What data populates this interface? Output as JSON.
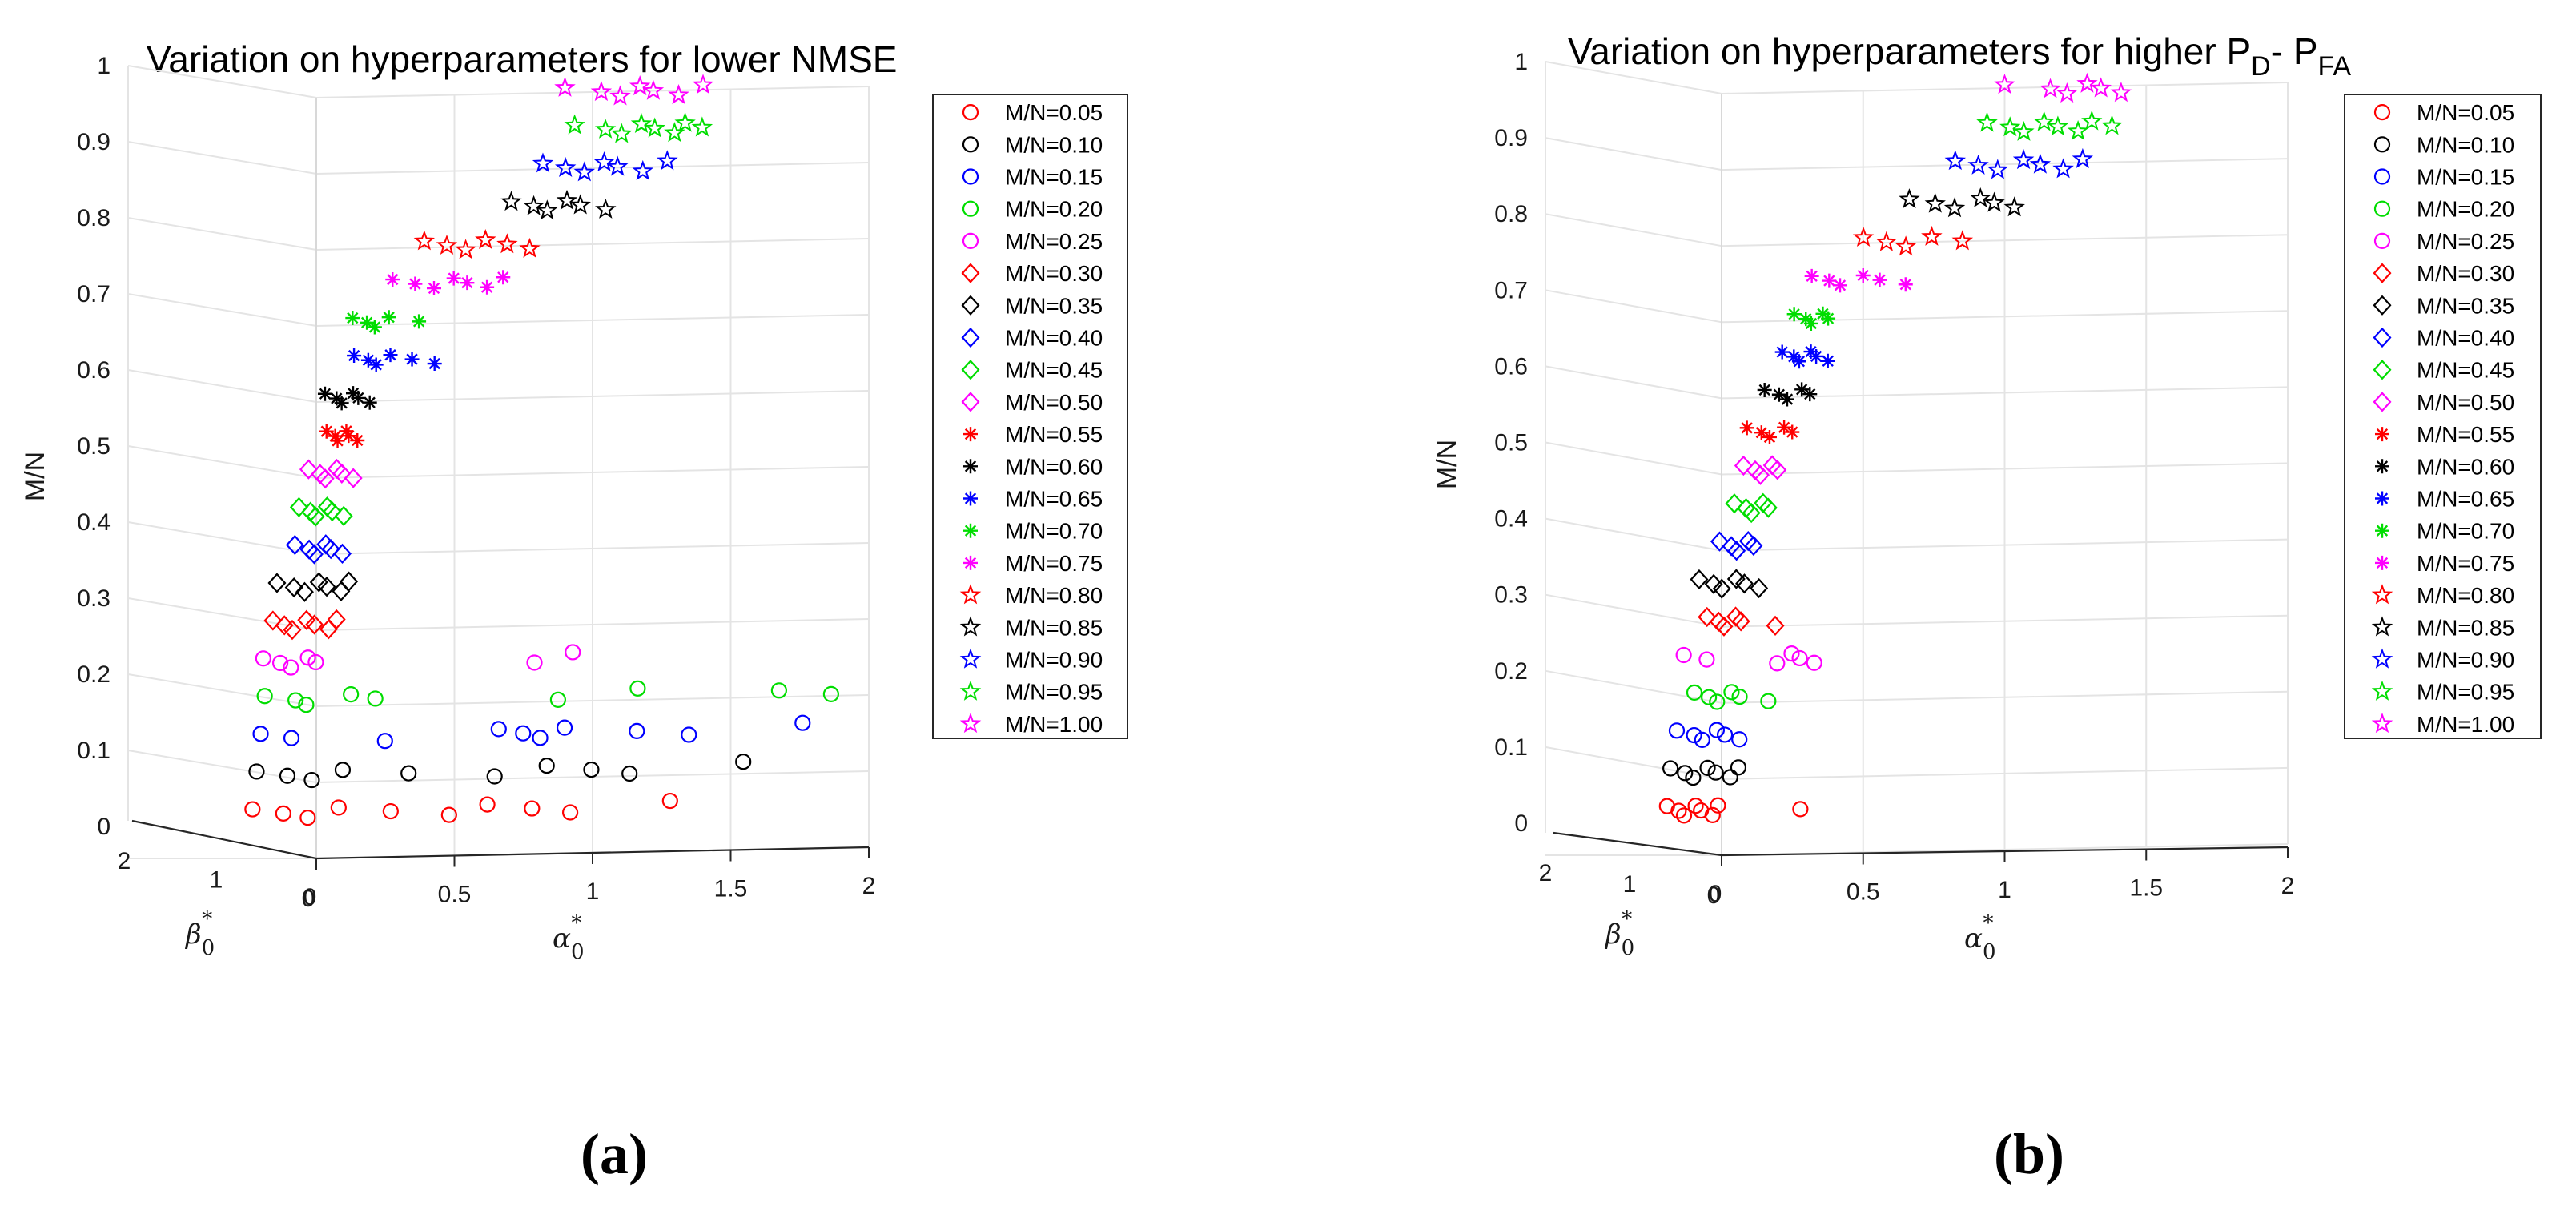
{
  "figure_labels": {
    "a": "(a)",
    "b": "(b)"
  },
  "chart_data": [
    {
      "id": "a",
      "type": "scatter",
      "title": "Variation on hyperparameters for lower NMSE",
      "xlabel": "α0*",
      "zlabel": "β0*",
      "ylabel": "M/N",
      "x_ticks": [
        "0",
        "0.5",
        "1",
        "1.5",
        "2"
      ],
      "z_ticks": [
        "2",
        "1",
        "0"
      ],
      "y_ticks": [
        "0",
        "0.1",
        "0.2",
        "0.3",
        "0.4",
        "0.5",
        "0.6",
        "0.7",
        "0.8",
        "0.9",
        "1"
      ],
      "ylim": [
        0,
        1
      ],
      "legend": [
        "M/N=0.05",
        "M/N=0.10",
        "M/N=0.15",
        "M/N=0.20",
        "M/N=0.25",
        "M/N=0.30",
        "M/N=0.35",
        "M/N=0.40",
        "M/N=0.45",
        "M/N=0.50",
        "M/N=0.55",
        "M/N=0.60",
        "M/N=0.65",
        "M/N=0.70",
        "M/N=0.75",
        "M/N=0.80",
        "M/N=0.85",
        "M/N=0.90",
        "M/N=0.95",
        "M/N=1.00"
      ],
      "series": [
        {
          "name": "M/N=0.05",
          "y": 0.05,
          "marker": "circle",
          "color": "#ff0000",
          "alpha": [
            0.05,
            0.15,
            0.25,
            0.35,
            0.55,
            0.75,
            0.9,
            1.05,
            1.2,
            1.55
          ]
        },
        {
          "name": "M/N=0.10",
          "y": 0.1,
          "marker": "circle",
          "color": "#000000",
          "alpha": [
            0.05,
            0.15,
            0.25,
            0.35,
            0.6,
            0.9,
            1.1,
            1.25,
            1.4,
            1.8
          ]
        },
        {
          "name": "M/N=0.15",
          "y": 0.15,
          "marker": "circle",
          "color": "#0000ff",
          "alpha": [
            0.05,
            0.15,
            0.5,
            0.9,
            1.0,
            1.05,
            1.15,
            1.4,
            1.6,
            2.0
          ]
        },
        {
          "name": "M/N=0.20",
          "y": 0.2,
          "marker": "circle",
          "color": "#00dd00",
          "alpha": [
            0.05,
            0.15,
            0.2,
            0.35,
            0.45,
            1.1,
            1.4,
            1.9,
            2.1
          ]
        },
        {
          "name": "M/N=0.25",
          "y": 0.25,
          "marker": "circle",
          "color": "#ff00ff",
          "alpha": [
            0.03,
            0.08,
            0.13,
            0.18,
            0.22,
            1.0,
            1.15
          ]
        },
        {
          "name": "M/N=0.30",
          "y": 0.3,
          "marker": "diamond",
          "color": "#ff0000",
          "alpha": [
            0.05,
            0.08,
            0.12,
            0.16,
            0.2,
            0.24,
            0.28
          ]
        },
        {
          "name": "M/N=0.35",
          "y": 0.35,
          "marker": "diamond",
          "color": "#000000",
          "alpha": [
            0.05,
            0.1,
            0.15,
            0.19,
            0.23,
            0.27,
            0.31
          ]
        },
        {
          "name": "M/N=0.40",
          "y": 0.4,
          "marker": "diamond",
          "color": "#0000ff",
          "alpha": [
            0.1,
            0.14,
            0.17,
            0.2,
            0.23,
            0.26
          ]
        },
        {
          "name": "M/N=0.45",
          "y": 0.45,
          "marker": "diamond",
          "color": "#00dd00",
          "alpha": [
            0.1,
            0.13,
            0.16,
            0.19,
            0.22,
            0.25
          ]
        },
        {
          "name": "M/N=0.50",
          "y": 0.5,
          "marker": "diamond",
          "color": "#ff00ff",
          "alpha": [
            0.12,
            0.15,
            0.18,
            0.21,
            0.24,
            0.27
          ]
        },
        {
          "name": "M/N=0.55",
          "y": 0.55,
          "marker": "asterisk",
          "color": "#ff0000",
          "alpha": [
            0.17,
            0.19,
            0.21,
            0.23,
            0.25,
            0.27
          ]
        },
        {
          "name": "M/N=0.60",
          "y": 0.6,
          "marker": "asterisk",
          "color": "#000000",
          "alpha": [
            0.15,
            0.18,
            0.21,
            0.24,
            0.27,
            0.3
          ]
        },
        {
          "name": "M/N=0.65",
          "y": 0.65,
          "marker": "asterisk",
          "color": "#0000ff",
          "alpha": [
            0.24,
            0.28,
            0.32,
            0.36,
            0.45,
            0.52
          ]
        },
        {
          "name": "M/N=0.70",
          "y": 0.7,
          "marker": "asterisk",
          "color": "#00dd00",
          "alpha": [
            0.22,
            0.26,
            0.3,
            0.34,
            0.46
          ]
        },
        {
          "name": "M/N=0.75",
          "y": 0.75,
          "marker": "asterisk",
          "color": "#ff00ff",
          "alpha": [
            0.35,
            0.42,
            0.5,
            0.56,
            0.62,
            0.68,
            0.75
          ]
        },
        {
          "name": "M/N=0.80",
          "y": 0.8,
          "marker": "star",
          "color": "#ff0000",
          "alpha": [
            0.45,
            0.52,
            0.6,
            0.66,
            0.75,
            0.82
          ]
        },
        {
          "name": "M/N=0.85",
          "y": 0.85,
          "marker": "star",
          "color": "#000000",
          "alpha": [
            0.75,
            0.82,
            0.88,
            0.94,
            1.0,
            1.08
          ]
        },
        {
          "name": "M/N=0.90",
          "y": 0.9,
          "marker": "star",
          "color": "#0000ff",
          "alpha": [
            0.85,
            0.92,
            1.0,
            1.06,
            1.12,
            1.2,
            1.3
          ]
        },
        {
          "name": "M/N=0.95",
          "y": 0.95,
          "marker": "star",
          "color": "#00dd00",
          "alpha": [
            0.95,
            1.05,
            1.12,
            1.18,
            1.24,
            1.3,
            1.35,
            1.4
          ]
        },
        {
          "name": "M/N=1.00",
          "y": 1.0,
          "marker": "star",
          "color": "#ff00ff",
          "alpha": [
            0.9,
            1.02,
            1.1,
            1.16,
            1.22,
            1.3,
            1.4
          ]
        }
      ]
    },
    {
      "id": "b",
      "type": "scatter",
      "title": "Variation on hyperparameters for higher P_D - P_FA",
      "title_parts": {
        "p": "P",
        "d": "D",
        "dash": "- ",
        "p2": "P",
        "fa": "FA",
        "prefix": "Variation on hyperparameters for higher "
      },
      "xlabel": "α0*",
      "zlabel": "β0*",
      "ylabel": "M/N",
      "x_ticks": [
        "0",
        "0.5",
        "1",
        "1.5",
        "2"
      ],
      "z_ticks": [
        "2",
        "1",
        "0"
      ],
      "y_ticks": [
        "0",
        "0.1",
        "0.2",
        "0.3",
        "0.4",
        "0.5",
        "0.6",
        "0.7",
        "0.8",
        "0.9",
        "1"
      ],
      "ylim": [
        0,
        1
      ],
      "legend": [
        "M/N=0.05",
        "M/N=0.10",
        "M/N=0.15",
        "M/N=0.20",
        "M/N=0.25",
        "M/N=0.30",
        "M/N=0.35",
        "M/N=0.40",
        "M/N=0.45",
        "M/N=0.50",
        "M/N=0.55",
        "M/N=0.60",
        "M/N=0.65",
        "M/N=0.70",
        "M/N=0.75",
        "M/N=0.80",
        "M/N=0.85",
        "M/N=0.90",
        "M/N=0.95",
        "M/N=1.00"
      ],
      "series": [
        {
          "name": "M/N=0.05",
          "y": 0.05,
          "marker": "circle",
          "color": "#ff0000",
          "alpha": [
            0.04,
            0.07,
            0.1,
            0.13,
            0.16,
            0.19,
            0.22,
            0.5
          ]
        },
        {
          "name": "M/N=0.10",
          "y": 0.1,
          "marker": "circle",
          "color": "#000000",
          "alpha": [
            0.04,
            0.08,
            0.12,
            0.16,
            0.2,
            0.24,
            0.28
          ]
        },
        {
          "name": "M/N=0.15",
          "y": 0.15,
          "marker": "circle",
          "color": "#0000ff",
          "alpha": [
            0.05,
            0.1,
            0.14,
            0.18,
            0.22,
            0.26
          ]
        },
        {
          "name": "M/N=0.20",
          "y": 0.2,
          "marker": "circle",
          "color": "#00dd00",
          "alpha": [
            0.1,
            0.14,
            0.18,
            0.22,
            0.26,
            0.35
          ]
        },
        {
          "name": "M/N=0.25",
          "y": 0.25,
          "marker": "circle",
          "color": "#ff00ff",
          "alpha": [
            0.05,
            0.12,
            0.38,
            0.42,
            0.46,
            0.5
          ]
        },
        {
          "name": "M/N=0.30",
          "y": 0.3,
          "marker": "diamond",
          "color": "#ff0000",
          "alpha": [
            0.12,
            0.15,
            0.18,
            0.21,
            0.24,
            0.35
          ]
        },
        {
          "name": "M/N=0.35",
          "y": 0.35,
          "marker": "diamond",
          "color": "#000000",
          "alpha": [
            0.08,
            0.12,
            0.16,
            0.2,
            0.24,
            0.28
          ]
        },
        {
          "name": "M/N=0.40",
          "y": 0.4,
          "marker": "diamond",
          "color": "#0000ff",
          "alpha": [
            0.14,
            0.17,
            0.2,
            0.23,
            0.26
          ]
        },
        {
          "name": "M/N=0.45",
          "y": 0.45,
          "marker": "diamond",
          "color": "#00dd00",
          "alpha": [
            0.18,
            0.21,
            0.24,
            0.27,
            0.3
          ]
        },
        {
          "name": "M/N=0.50",
          "y": 0.5,
          "marker": "diamond",
          "color": "#ff00ff",
          "alpha": [
            0.2,
            0.23,
            0.26,
            0.29,
            0.32
          ]
        },
        {
          "name": "M/N=0.55",
          "y": 0.55,
          "marker": "asterisk",
          "color": "#ff0000",
          "alpha": [
            0.2,
            0.24,
            0.28,
            0.32,
            0.36
          ]
        },
        {
          "name": "M/N=0.60",
          "y": 0.6,
          "marker": "asterisk",
          "color": "#000000",
          "alpha": [
            0.25,
            0.29,
            0.33,
            0.37,
            0.41
          ]
        },
        {
          "name": "M/N=0.65",
          "y": 0.65,
          "marker": "asterisk",
          "color": "#0000ff",
          "alpha": [
            0.3,
            0.33,
            0.36,
            0.39,
            0.42,
            0.45
          ]
        },
        {
          "name": "M/N=0.70",
          "y": 0.7,
          "marker": "asterisk",
          "color": "#00dd00",
          "alpha": [
            0.33,
            0.36,
            0.39,
            0.42,
            0.45
          ]
        },
        {
          "name": "M/N=0.75",
          "y": 0.75,
          "marker": "asterisk",
          "color": "#ff00ff",
          "alpha": [
            0.38,
            0.43,
            0.48,
            0.55,
            0.62,
            0.7
          ]
        },
        {
          "name": "M/N=0.80",
          "y": 0.8,
          "marker": "star",
          "color": "#ff0000",
          "alpha": [
            0.55,
            0.62,
            0.7,
            0.78,
            0.9
          ]
        },
        {
          "name": "M/N=0.85",
          "y": 0.85,
          "marker": "star",
          "color": "#000000",
          "alpha": [
            0.7,
            0.78,
            0.86,
            0.94,
            1.0,
            1.06
          ]
        },
        {
          "name": "M/N=0.90",
          "y": 0.9,
          "marker": "star",
          "color": "#0000ff",
          "alpha": [
            0.85,
            0.92,
            1.0,
            1.08,
            1.15,
            1.22,
            1.3
          ]
        },
        {
          "name": "M/N=0.95",
          "y": 0.95,
          "marker": "star",
          "color": "#00dd00",
          "alpha": [
            0.95,
            1.02,
            1.08,
            1.14,
            1.2,
            1.26,
            1.32,
            1.38
          ]
        },
        {
          "name": "M/N=1.00",
          "y": 1.0,
          "marker": "star",
          "color": "#ff00ff",
          "alpha": [
            1.0,
            1.15,
            1.22,
            1.28,
            1.34,
            1.4
          ]
        }
      ]
    }
  ]
}
